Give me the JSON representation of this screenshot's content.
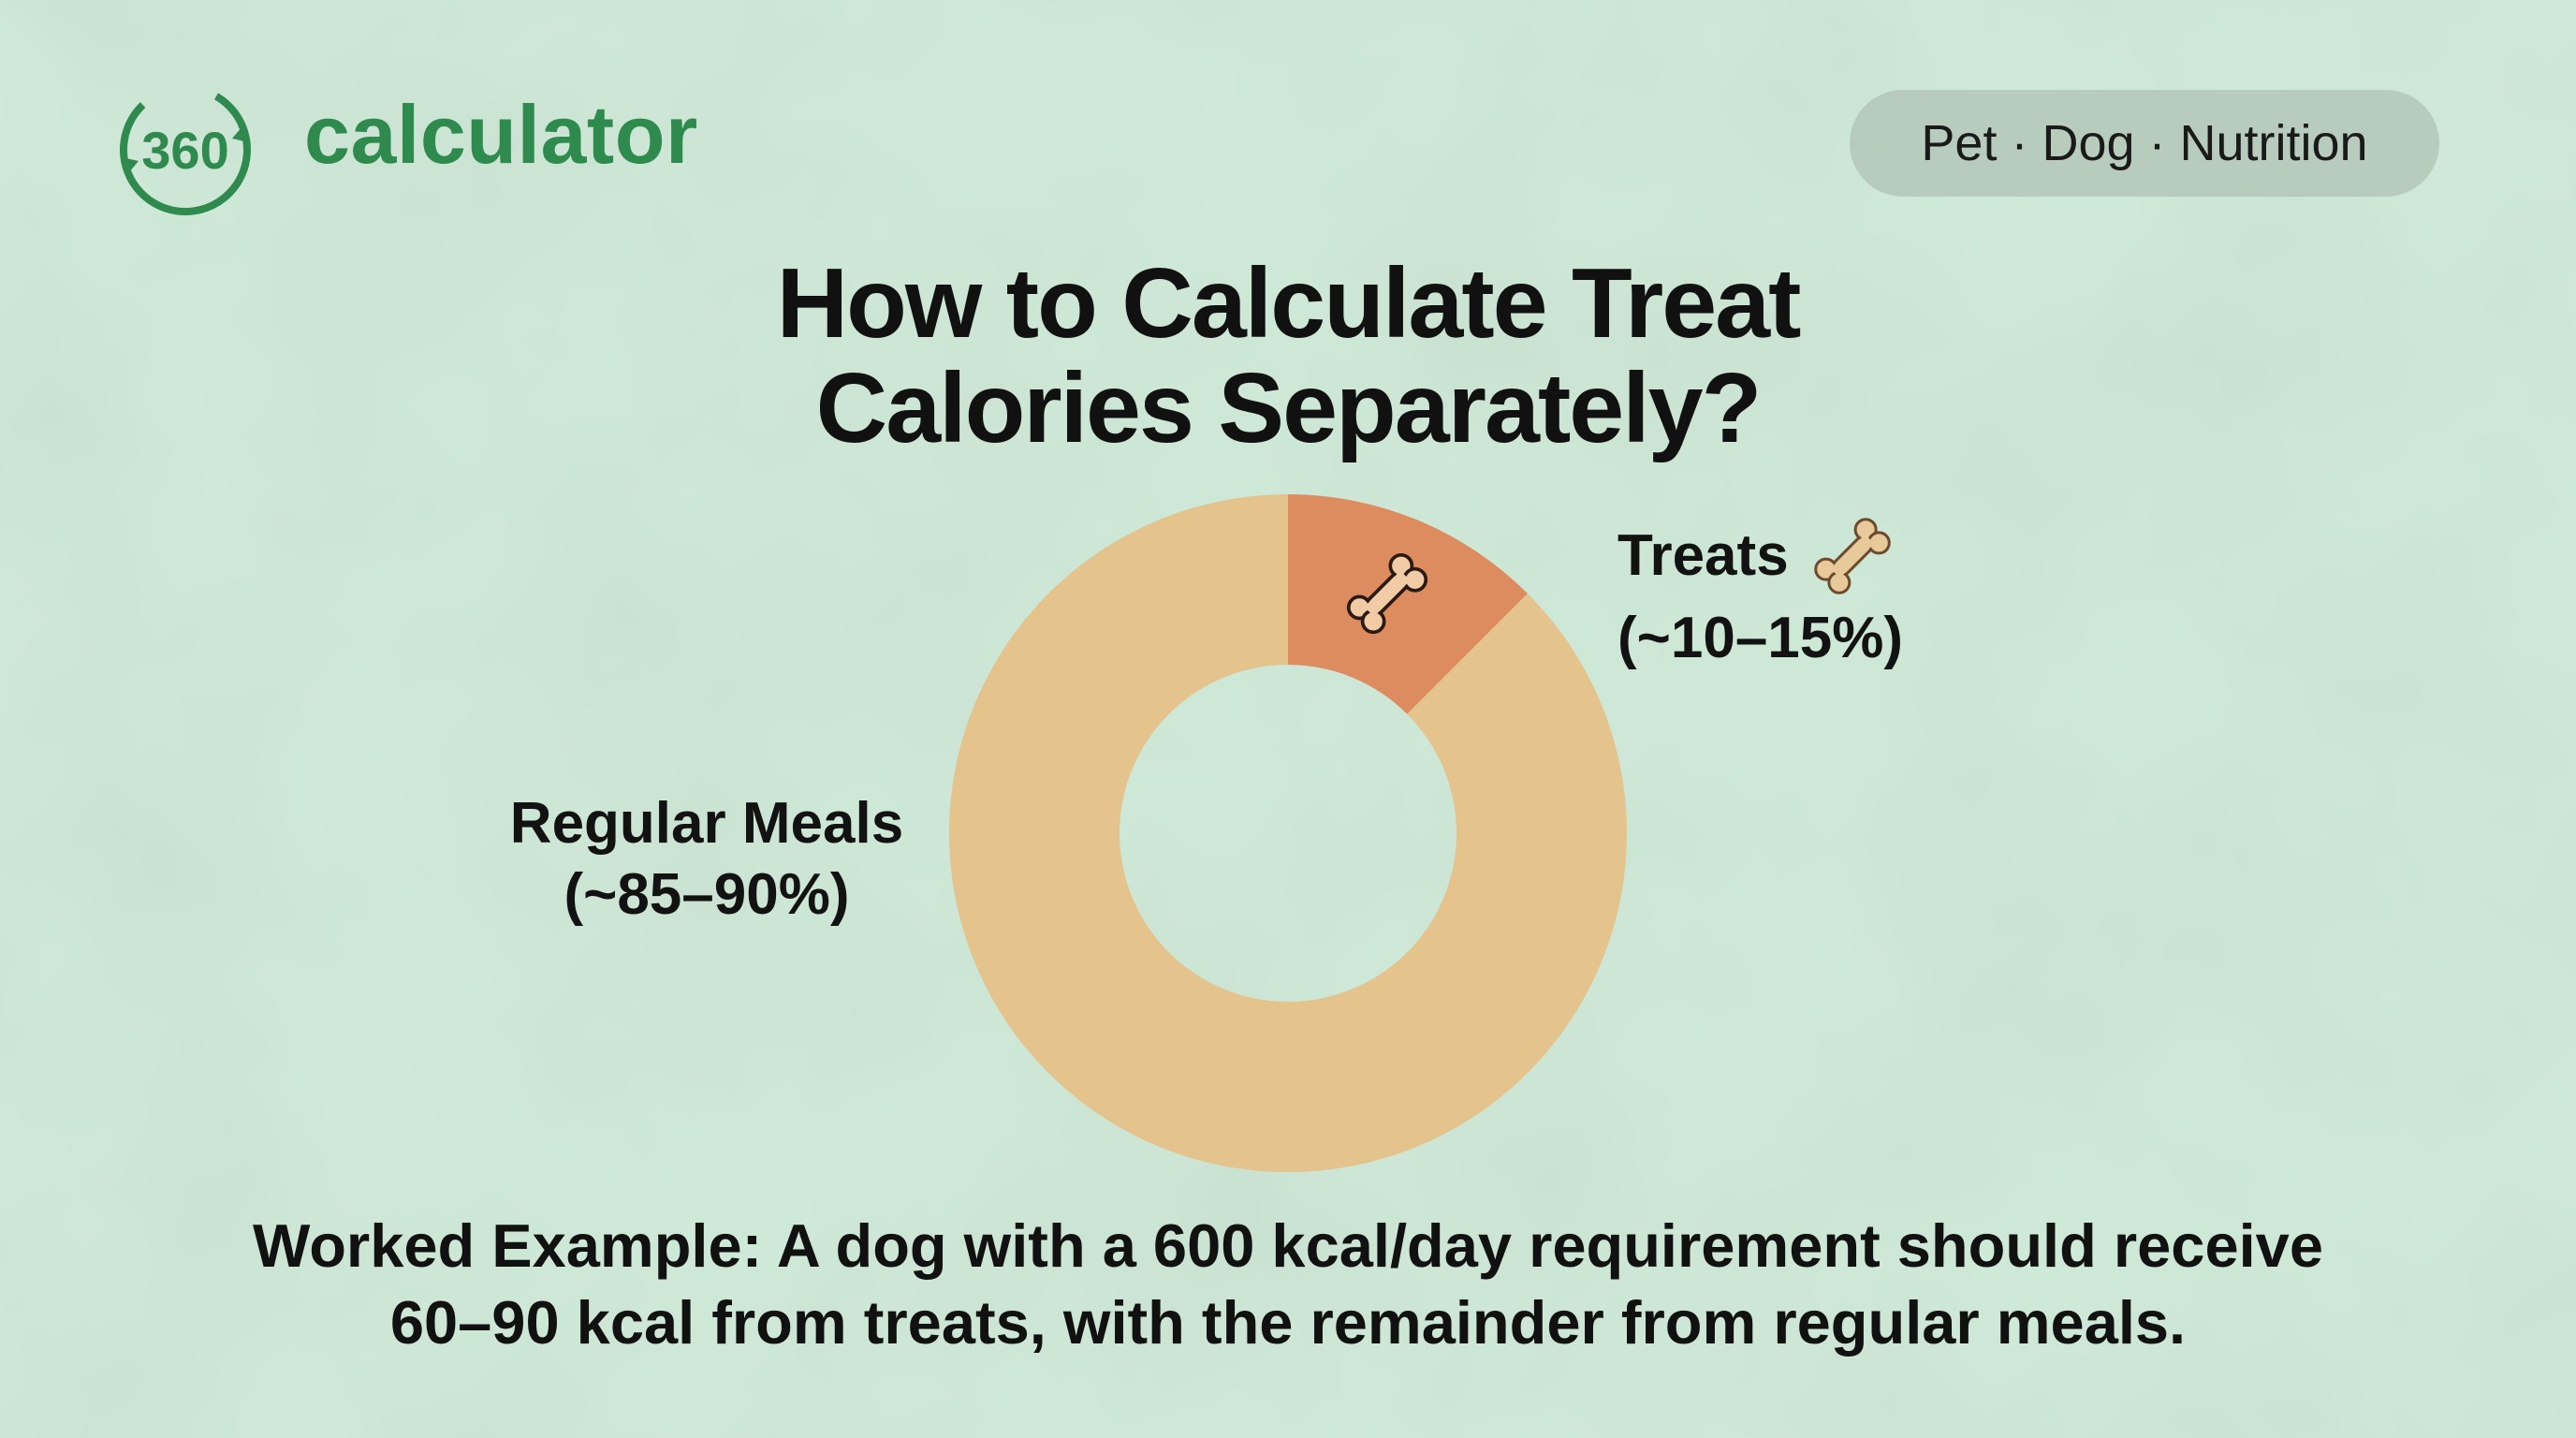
{
  "brand": {
    "logo_text": "360",
    "name": "calculator",
    "color": "#2f8a4e"
  },
  "category_pill": "Pet · Dog · Nutrition",
  "title": {
    "line1": "How to Calculate Treat",
    "line2": "Calories Separately?"
  },
  "chart_data": {
    "type": "pie",
    "donut": true,
    "title": "",
    "slices": [
      {
        "label": "Treats",
        "range_label": "(~10–15%)",
        "value": 12.5,
        "color": "#dd8c5f",
        "icon": "bone-icon"
      },
      {
        "label": "Regular Meals",
        "range_label": "(~85–90%)",
        "value": 87.5,
        "color": "#e4c38c"
      }
    ],
    "legend": "none"
  },
  "labels": {
    "treats_name": "Treats",
    "treats_range": "(~10–15%)",
    "meals_name": "Regular Meals",
    "meals_range": "(~85–90%)"
  },
  "example": {
    "line1": "Worked Example: A dog with a 600 kcal/day requirement should receive",
    "line2": "60–90 kcal from treats, with the remainder from regular meals."
  },
  "colors": {
    "background": "#cde8d6",
    "pill": "#b1c3b6",
    "text": "#111111"
  }
}
